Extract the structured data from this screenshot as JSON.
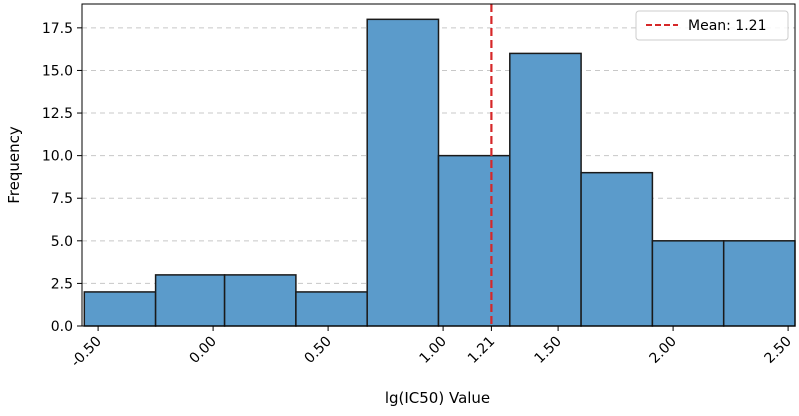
{
  "chart_data": {
    "type": "histogram",
    "xlabel": "lg(IC50) Value",
    "ylabel": "Frequency",
    "xlim": [
      -0.57,
      2.53
    ],
    "ylim": [
      0,
      18.9
    ],
    "bins": [
      {
        "x0": -0.56,
        "x1": -0.25,
        "count": 2
      },
      {
        "x0": -0.25,
        "x1": 0.05,
        "count": 3
      },
      {
        "x0": 0.05,
        "x1": 0.36,
        "count": 3
      },
      {
        "x0": 0.36,
        "x1": 0.67,
        "count": 2
      },
      {
        "x0": 0.67,
        "x1": 0.98,
        "count": 18
      },
      {
        "x0": 0.98,
        "x1": 1.29,
        "count": 10
      },
      {
        "x0": 1.29,
        "x1": 1.6,
        "count": 16
      },
      {
        "x0": 1.6,
        "x1": 1.91,
        "count": 9
      },
      {
        "x0": 1.91,
        "x1": 2.22,
        "count": 5
      },
      {
        "x0": 2.22,
        "x1": 2.53,
        "count": 5
      }
    ],
    "mean": 1.21,
    "mean_label": "Mean: 1.21",
    "x_ticks": [
      {
        "value": -0.5,
        "label": "-0.50"
      },
      {
        "value": 0.0,
        "label": "0.00"
      },
      {
        "value": 0.5,
        "label": "0.50"
      },
      {
        "value": 1.0,
        "label": "1.00"
      },
      {
        "value": 1.21,
        "label": "1.21"
      },
      {
        "value": 1.5,
        "label": "1.50"
      },
      {
        "value": 2.0,
        "label": "2.00"
      },
      {
        "value": 2.5,
        "label": "2.50"
      }
    ],
    "y_ticks": [
      {
        "value": 0,
        "label": "0.0"
      },
      {
        "value": 2.5,
        "label": "2.5"
      },
      {
        "value": 5,
        "label": "5.0"
      },
      {
        "value": 7.5,
        "label": "7.5"
      },
      {
        "value": 10,
        "label": "10.0"
      },
      {
        "value": 12.5,
        "label": "12.5"
      },
      {
        "value": 15,
        "label": "15.0"
      },
      {
        "value": 17.5,
        "label": "17.5"
      }
    ],
    "grid": "horizontal-dashed",
    "legend_position": "top-right",
    "colors": {
      "bar_fill": "#5b9bcb",
      "bar_edge": "#1a1a1a",
      "mean_line": "#d62728",
      "grid": "#c8c8c8"
    }
  }
}
